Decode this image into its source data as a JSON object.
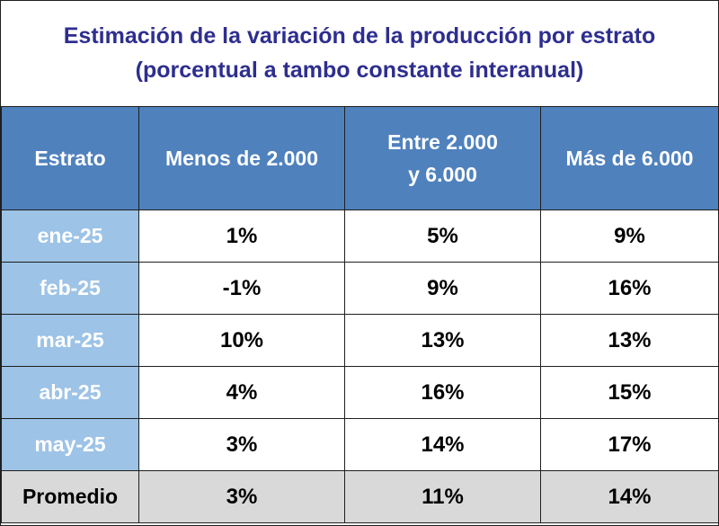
{
  "title": {
    "line1": "Estimación de la variación de la producción por estrato",
    "line2": "(porcentual a tambo constante interanual)"
  },
  "chart_data": {
    "type": "table",
    "columns": [
      "Estrato",
      "Menos de 2.000",
      "Entre 2.000 y 6.000",
      "Más de 6.000"
    ],
    "rows": [
      {
        "label": "ene-25",
        "values": [
          "1%",
          "5%",
          "9%"
        ]
      },
      {
        "label": "feb-25",
        "values": [
          "-1%",
          "9%",
          "16%"
        ]
      },
      {
        "label": "mar-25",
        "values": [
          "10%",
          "13%",
          "13%"
        ]
      },
      {
        "label": "abr-25",
        "values": [
          "4%",
          "16%",
          "15%"
        ]
      },
      {
        "label": "may-25",
        "values": [
          "3%",
          "14%",
          "17%"
        ]
      }
    ],
    "summary": {
      "label": "Promedio",
      "values": [
        "3%",
        "11%",
        "14%"
      ]
    }
  },
  "colors": {
    "header_bg": "#4f81bd",
    "row_label_bg": "#9dc3e6",
    "summary_bg": "#d9d9d9",
    "title_color": "#2e2e8f"
  }
}
